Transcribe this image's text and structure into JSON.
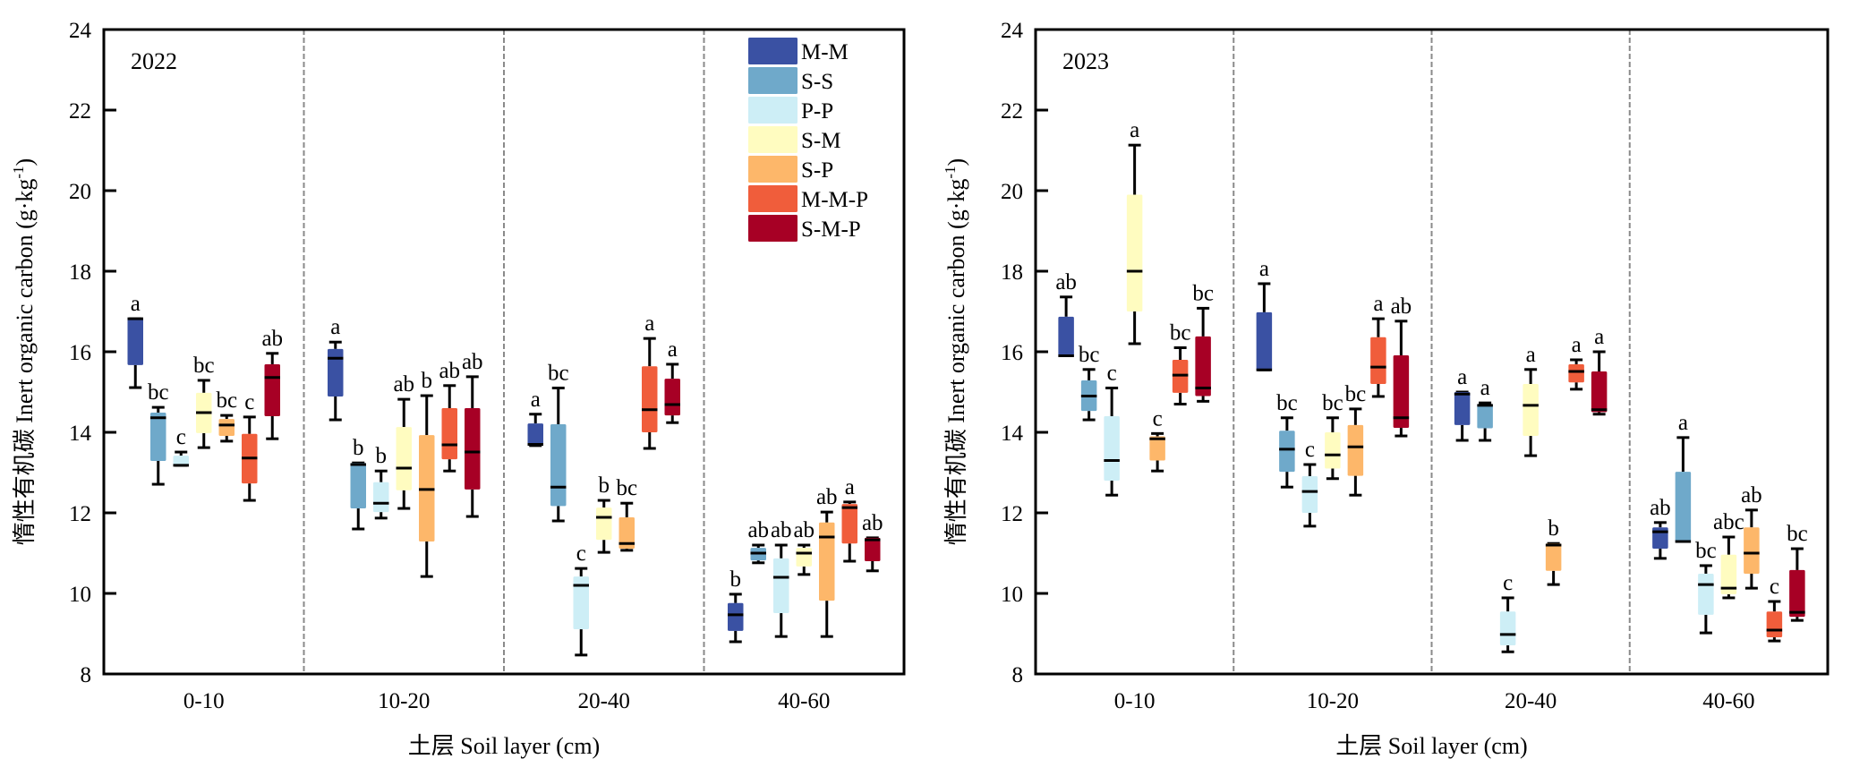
{
  "chart_data": {
    "type": "box",
    "groups": [
      "M-M",
      "S-S",
      "P-P",
      "S-M",
      "S-P",
      "M-M-P",
      "S-M-P"
    ],
    "colors": {
      "M-M": "#3a51a3",
      "S-S": "#6fa9ca",
      "P-P": "#cdeef6",
      "S-M": "#fffcc0",
      "S-P": "#fdb76a",
      "M-M-P": "#f05d3b",
      "S-M-P": "#a70025"
    },
    "legend": {
      "position": "top-right of left panel",
      "entries": [
        "M-M",
        "S-S",
        "P-P",
        "S-M",
        "S-P",
        "M-M-P",
        "S-M-P"
      ]
    },
    "categories": [
      "0-10",
      "10-20",
      "20-40",
      "40-60"
    ],
    "xlabel": "土层 Soil layer (cm)",
    "ylabel": "惰性有机碳 Inert organic carbon (g·kg",
    "ylabel_sup": "-1",
    "ylabel_close": ")",
    "ylim": [
      8,
      24
    ],
    "yticks": [
      8,
      10,
      12,
      14,
      16,
      18,
      20,
      22,
      24
    ],
    "panels": [
      {
        "title": "2022",
        "layers": [
          {
            "layer": "0-10",
            "boxes": [
              {
                "group": "M-M",
                "min": 15.11,
                "q1": 15.67,
                "median": 16.82,
                "q3": 16.82,
                "max": 16.82,
                "sig": "a"
              },
              {
                "group": "S-S",
                "min": 12.71,
                "q1": 13.29,
                "median": 14.36,
                "q3": 14.49,
                "max": 14.62,
                "sig": "bc"
              },
              {
                "group": "P-P",
                "min": 13.18,
                "q1": 13.18,
                "median": 13.18,
                "q3": 13.42,
                "max": 13.51,
                "sig": "c"
              },
              {
                "group": "S-M",
                "min": 13.62,
                "q1": 13.98,
                "median": 14.49,
                "q3": 14.98,
                "max": 15.29,
                "sig": "bc"
              },
              {
                "group": "S-P",
                "min": 13.78,
                "q1": 13.91,
                "median": 14.18,
                "q3": 14.33,
                "max": 14.42,
                "sig": "bc"
              },
              {
                "group": "M-M-P",
                "min": 12.31,
                "q1": 12.73,
                "median": 13.36,
                "q3": 13.96,
                "max": 14.38,
                "sig": "c"
              },
              {
                "group": "S-M-P",
                "min": 13.84,
                "q1": 14.4,
                "median": 15.36,
                "q3": 15.69,
                "max": 15.96,
                "sig": "ab"
              }
            ]
          },
          {
            "layer": "10-20",
            "boxes": [
              {
                "group": "M-M",
                "min": 14.31,
                "q1": 14.89,
                "median": 15.84,
                "q3": 16.07,
                "max": 16.24,
                "sig": "a"
              },
              {
                "group": "S-S",
                "min": 11.6,
                "q1": 12.11,
                "median": 13.2,
                "q3": 13.24,
                "max": 13.24,
                "sig": "b"
              },
              {
                "group": "P-P",
                "min": 11.87,
                "q1": 12.02,
                "median": 12.24,
                "q3": 12.76,
                "max": 13.04,
                "sig": "b"
              },
              {
                "group": "S-M",
                "min": 12.11,
                "q1": 12.56,
                "median": 13.11,
                "q3": 14.13,
                "max": 14.82,
                "sig": "ab"
              },
              {
                "group": "S-P",
                "min": 10.42,
                "q1": 11.29,
                "median": 12.58,
                "q3": 13.93,
                "max": 14.91,
                "sig": "b"
              },
              {
                "group": "M-M-P",
                "min": 13.04,
                "q1": 13.33,
                "median": 13.69,
                "q3": 14.6,
                "max": 15.16,
                "sig": "ab"
              },
              {
                "group": "S-M-P",
                "min": 11.91,
                "q1": 12.58,
                "median": 13.51,
                "q3": 14.6,
                "max": 15.38,
                "sig": "ab"
              }
            ]
          },
          {
            "layer": "20-40",
            "boxes": [
              {
                "group": "M-M",
                "min": 13.67,
                "q1": 13.67,
                "median": 13.7,
                "q3": 14.22,
                "max": 14.45,
                "sig": "a"
              },
              {
                "group": "S-S",
                "min": 11.8,
                "q1": 12.17,
                "median": 12.64,
                "q3": 14.2,
                "max": 15.1,
                "sig": "bc"
              },
              {
                "group": "P-P",
                "min": 8.47,
                "q1": 9.11,
                "median": 10.2,
                "q3": 10.42,
                "max": 10.62,
                "sig": "c"
              },
              {
                "group": "S-M",
                "min": 11.02,
                "q1": 11.33,
                "median": 11.89,
                "q3": 12.13,
                "max": 12.31,
                "sig": "b"
              },
              {
                "group": "S-P",
                "min": 11.07,
                "q1": 11.11,
                "median": 11.24,
                "q3": 11.89,
                "max": 12.24,
                "sig": "bc"
              },
              {
                "group": "M-M-P",
                "min": 13.6,
                "q1": 14.0,
                "median": 14.56,
                "q3": 15.64,
                "max": 16.33,
                "sig": "a"
              },
              {
                "group": "S-M-P",
                "min": 14.24,
                "q1": 14.42,
                "median": 14.69,
                "q3": 15.33,
                "max": 15.69,
                "sig": "a"
              }
            ]
          },
          {
            "layer": "40-60",
            "boxes": [
              {
                "group": "M-M",
                "min": 8.8,
                "q1": 9.07,
                "median": 9.47,
                "q3": 9.76,
                "max": 9.98,
                "sig": "b"
              },
              {
                "group": "S-S",
                "min": 10.76,
                "q1": 10.82,
                "median": 11.0,
                "q3": 11.13,
                "max": 11.2,
                "sig": "ab"
              },
              {
                "group": "P-P",
                "min": 8.93,
                "q1": 9.51,
                "median": 10.4,
                "q3": 10.87,
                "max": 11.2,
                "sig": "ab"
              },
              {
                "group": "S-M",
                "min": 10.47,
                "q1": 10.67,
                "median": 11.0,
                "q3": 11.13,
                "max": 11.2,
                "sig": "ab"
              },
              {
                "group": "S-P",
                "min": 8.93,
                "q1": 9.82,
                "median": 11.4,
                "q3": 11.76,
                "max": 12.02,
                "sig": "ab"
              },
              {
                "group": "M-M-P",
                "min": 10.8,
                "q1": 11.24,
                "median": 12.13,
                "q3": 12.22,
                "max": 12.27,
                "sig": "a"
              },
              {
                "group": "S-M-P",
                "min": 10.56,
                "q1": 10.8,
                "median": 11.33,
                "q3": 11.38,
                "max": 11.38,
                "sig": "ab"
              }
            ]
          }
        ]
      },
      {
        "title": "2023",
        "layers": [
          {
            "layer": "0-10",
            "boxes": [
              {
                "group": "M-M",
                "min": 15.9,
                "q1": 15.9,
                "median": 15.9,
                "q3": 16.87,
                "max": 17.36,
                "sig": "ab"
              },
              {
                "group": "S-S",
                "min": 14.31,
                "q1": 14.53,
                "median": 14.9,
                "q3": 15.29,
                "max": 15.56,
                "sig": "bc"
              },
              {
                "group": "P-P",
                "min": 12.44,
                "q1": 12.8,
                "median": 13.3,
                "q3": 14.4,
                "max": 15.1,
                "sig": "c"
              },
              {
                "group": "S-M",
                "min": 16.2,
                "q1": 17.0,
                "median": 18.0,
                "q3": 19.9,
                "max": 21.13,
                "sig": "a"
              },
              {
                "group": "S-P",
                "min": 13.04,
                "q1": 13.3,
                "median": 13.84,
                "q3": 13.9,
                "max": 13.97,
                "sig": "c"
              },
              {
                "group": "M-M-P",
                "min": 14.7,
                "q1": 14.98,
                "median": 15.42,
                "q3": 15.8,
                "max": 16.1,
                "sig": "bc"
              },
              {
                "group": "S-M-P",
                "min": 14.77,
                "q1": 14.9,
                "median": 15.1,
                "q3": 16.38,
                "max": 17.08,
                "sig": "bc"
              }
            ]
          },
          {
            "layer": "10-20",
            "boxes": [
              {
                "group": "M-M",
                "min": 15.55,
                "q1": 15.55,
                "median": 15.55,
                "q3": 16.98,
                "max": 17.69,
                "sig": "a"
              },
              {
                "group": "S-S",
                "min": 12.64,
                "q1": 13.02,
                "median": 13.58,
                "q3": 14.04,
                "max": 14.36,
                "sig": "bc"
              },
              {
                "group": "P-P",
                "min": 11.67,
                "q1": 12.0,
                "median": 12.53,
                "q3": 12.91,
                "max": 13.2,
                "sig": "c"
              },
              {
                "group": "S-M",
                "min": 12.85,
                "q1": 13.1,
                "median": 13.44,
                "q3": 14.0,
                "max": 14.36,
                "sig": "bc"
              },
              {
                "group": "S-P",
                "min": 12.44,
                "q1": 12.92,
                "median": 13.64,
                "q3": 14.18,
                "max": 14.58,
                "sig": "bc"
              },
              {
                "group": "M-M-P",
                "min": 14.89,
                "q1": 15.2,
                "median": 15.62,
                "q3": 16.36,
                "max": 16.82,
                "sig": "a"
              },
              {
                "group": "S-M-P",
                "min": 13.91,
                "q1": 14.11,
                "median": 14.36,
                "q3": 15.91,
                "max": 16.76,
                "sig": "ab"
              }
            ]
          },
          {
            "layer": "20-40",
            "boxes": [
              {
                "group": "M-M",
                "min": 13.8,
                "q1": 14.18,
                "median": 14.95,
                "q3": 15.0,
                "max": 15.0,
                "sig": "a"
              },
              {
                "group": "S-S",
                "min": 13.8,
                "q1": 14.1,
                "median": 14.67,
                "q3": 14.7,
                "max": 14.73,
                "sig": "a"
              },
              {
                "group": "P-P",
                "min": 8.55,
                "q1": 8.71,
                "median": 8.98,
                "q3": 9.55,
                "max": 9.89,
                "sig": "c"
              },
              {
                "group": "S-M",
                "min": 13.42,
                "q1": 13.91,
                "median": 14.67,
                "q3": 15.2,
                "max": 15.56,
                "sig": "a"
              },
              {
                "group": "S-P",
                "min": 10.22,
                "q1": 10.56,
                "median": 11.2,
                "q3": 11.24,
                "max": 11.24,
                "sig": "b"
              },
              {
                "group": "M-M-P",
                "min": 15.07,
                "q1": 15.24,
                "median": 15.51,
                "q3": 15.69,
                "max": 15.8,
                "sig": "a"
              },
              {
                "group": "S-M-P",
                "min": 14.45,
                "q1": 14.5,
                "median": 14.56,
                "q3": 15.51,
                "max": 16.0,
                "sig": "a"
              }
            ]
          },
          {
            "layer": "40-60",
            "boxes": [
              {
                "group": "M-M",
                "min": 10.87,
                "q1": 11.11,
                "median": 11.53,
                "q3": 11.64,
                "max": 11.76,
                "sig": "ab"
              },
              {
                "group": "S-S",
                "min": 11.29,
                "q1": 11.29,
                "median": 11.29,
                "q3": 13.02,
                "max": 13.87,
                "sig": "a"
              },
              {
                "group": "P-P",
                "min": 9.02,
                "q1": 9.47,
                "median": 10.22,
                "q3": 10.49,
                "max": 10.69,
                "sig": "bc"
              },
              {
                "group": "S-M",
                "min": 9.89,
                "q1": 9.98,
                "median": 10.13,
                "q3": 10.96,
                "max": 11.4,
                "sig": "abc"
              },
              {
                "group": "S-P",
                "min": 10.13,
                "q1": 10.49,
                "median": 11.0,
                "q3": 11.64,
                "max": 12.07,
                "sig": "ab"
              },
              {
                "group": "M-M-P",
                "min": 8.82,
                "q1": 8.91,
                "median": 9.09,
                "q3": 9.55,
                "max": 9.8,
                "sig": "c"
              },
              {
                "group": "S-M-P",
                "min": 9.33,
                "q1": 9.42,
                "median": 9.53,
                "q3": 10.58,
                "max": 11.11,
                "sig": "bc"
              }
            ]
          }
        ]
      }
    ]
  }
}
